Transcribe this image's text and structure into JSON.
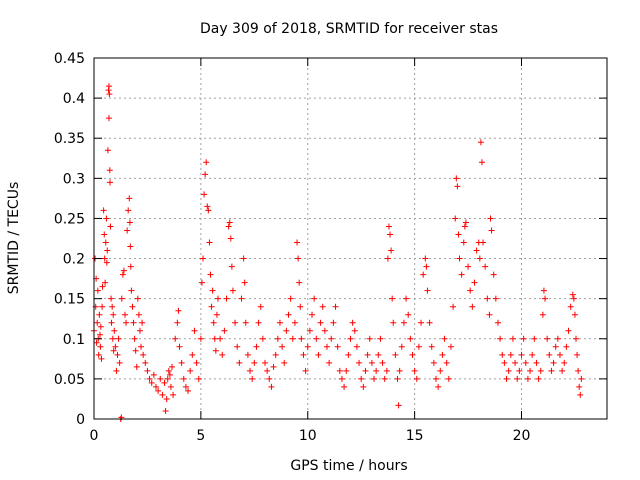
{
  "chart_data": {
    "type": "scatter",
    "title": "Day 309 of 2018, SRMTID for receiver stas",
    "xlabel": "GPS time / hours",
    "ylabel": "SRMTID / TECUs",
    "xlim": [
      0,
      24
    ],
    "ylim": [
      0,
      0.45
    ],
    "x_ticks": [
      0,
      5,
      10,
      15,
      20
    ],
    "x_tick_labels": [
      "0",
      "5",
      "10",
      "15",
      "20"
    ],
    "y_ticks": [
      0,
      0.05,
      0.1,
      0.15,
      0.2,
      0.25,
      0.3,
      0.35,
      0.4,
      0.45
    ],
    "y_tick_labels": [
      "0",
      "0.05",
      "0.1",
      "0.15",
      "0.2",
      "0.25",
      "0.3",
      "0.35",
      "0.4",
      "0.45"
    ],
    "grid": true,
    "marker": "+",
    "color": "#ff0000",
    "series": [
      {
        "points": [
          [
            0.0,
            0.11
          ],
          [
            0.05,
            0.2
          ],
          [
            0.08,
            0.14
          ],
          [
            0.1,
            0.175
          ],
          [
            0.12,
            0.095
          ],
          [
            0.15,
            0.12
          ],
          [
            0.18,
            0.16
          ],
          [
            0.2,
            0.1
          ],
          [
            0.22,
            0.08
          ],
          [
            0.25,
            0.13
          ],
          [
            0.28,
            0.105
          ],
          [
            0.3,
            0.09
          ],
          [
            0.32,
            0.115
          ],
          [
            0.35,
            0.075
          ],
          [
            0.38,
            0.14
          ],
          [
            0.4,
            0.165
          ],
          [
            0.45,
            0.26
          ],
          [
            0.48,
            0.23
          ],
          [
            0.5,
            0.2
          ],
          [
            0.52,
            0.17
          ],
          [
            0.55,
            0.22
          ],
          [
            0.58,
            0.25
          ],
          [
            0.6,
            0.195
          ],
          [
            0.62,
            0.21
          ],
          [
            0.65,
            0.335
          ],
          [
            0.68,
            0.41
          ],
          [
            0.7,
            0.415
          ],
          [
            0.72,
            0.405
          ],
          [
            0.7,
            0.375
          ],
          [
            0.74,
            0.31
          ],
          [
            0.75,
            0.295
          ],
          [
            0.77,
            0.24
          ],
          [
            0.8,
            0.15
          ],
          [
            0.82,
            0.12
          ],
          [
            0.85,
            0.14
          ],
          [
            0.88,
            0.1
          ],
          [
            0.9,
            0.13
          ],
          [
            0.92,
            0.085
          ],
          [
            0.95,
            0.11
          ],
          [
            1.0,
            0.09
          ],
          [
            1.05,
            0.06
          ],
          [
            1.1,
            0.08
          ],
          [
            1.15,
            0.1
          ],
          [
            1.2,
            0.07
          ],
          [
            1.25,
            0.0
          ],
          [
            1.28,
            0.002
          ],
          [
            1.3,
            0.15
          ],
          [
            1.35,
            0.18
          ],
          [
            1.4,
            0.185
          ],
          [
            1.45,
            0.13
          ],
          [
            1.5,
            0.12
          ],
          [
            1.55,
            0.235
          ],
          [
            1.6,
            0.26
          ],
          [
            1.65,
            0.275
          ],
          [
            1.68,
            0.245
          ],
          [
            1.7,
            0.215
          ],
          [
            1.72,
            0.19
          ],
          [
            1.75,
            0.16
          ],
          [
            1.8,
            0.14
          ],
          [
            1.85,
            0.12
          ],
          [
            1.9,
            0.1
          ],
          [
            1.95,
            0.085
          ],
          [
            2.0,
            0.065
          ],
          [
            2.05,
            0.15
          ],
          [
            2.1,
            0.13
          ],
          [
            2.15,
            0.11
          ],
          [
            2.2,
            0.09
          ],
          [
            2.25,
            0.12
          ],
          [
            2.3,
            0.08
          ],
          [
            2.4,
            0.07
          ],
          [
            2.5,
            0.06
          ],
          [
            2.6,
            0.05
          ],
          [
            2.7,
            0.045
          ],
          [
            2.8,
            0.055
          ],
          [
            2.9,
            0.04
          ],
          [
            3.0,
            0.035
          ],
          [
            3.1,
            0.05
          ],
          [
            3.2,
            0.03
          ],
          [
            3.3,
            0.045
          ],
          [
            3.4,
            0.025
          ],
          [
            3.5,
            0.06
          ],
          [
            3.6,
            0.04
          ],
          [
            3.7,
            0.03
          ],
          [
            3.35,
            0.01
          ],
          [
            3.45,
            0.05
          ],
          [
            3.55,
            0.055
          ],
          [
            3.65,
            0.065
          ],
          [
            3.8,
            0.1
          ],
          [
            3.9,
            0.12
          ],
          [
            3.95,
            0.135
          ],
          [
            4.0,
            0.09
          ],
          [
            4.1,
            0.07
          ],
          [
            4.2,
            0.05
          ],
          [
            4.3,
            0.04
          ],
          [
            4.4,
            0.035
          ],
          [
            4.5,
            0.06
          ],
          [
            4.6,
            0.08
          ],
          [
            4.7,
            0.11
          ],
          [
            4.8,
            0.07
          ],
          [
            4.9,
            0.05
          ],
          [
            5.0,
            0.1
          ],
          [
            5.05,
            0.17
          ],
          [
            5.1,
            0.2
          ],
          [
            5.15,
            0.28
          ],
          [
            5.2,
            0.305
          ],
          [
            5.25,
            0.32
          ],
          [
            5.3,
            0.265
          ],
          [
            5.35,
            0.26
          ],
          [
            5.4,
            0.22
          ],
          [
            5.45,
            0.18
          ],
          [
            5.5,
            0.14
          ],
          [
            5.55,
            0.16
          ],
          [
            5.6,
            0.12
          ],
          [
            5.65,
            0.1
          ],
          [
            5.7,
            0.085
          ],
          [
            5.75,
            0.13
          ],
          [
            5.8,
            0.15
          ],
          [
            5.9,
            0.1
          ],
          [
            6.0,
            0.08
          ],
          [
            6.1,
            0.11
          ],
          [
            6.2,
            0.15
          ],
          [
            6.3,
            0.24
          ],
          [
            6.35,
            0.245
          ],
          [
            6.4,
            0.225
          ],
          [
            6.45,
            0.19
          ],
          [
            6.5,
            0.16
          ],
          [
            6.6,
            0.12
          ],
          [
            6.7,
            0.09
          ],
          [
            6.8,
            0.07
          ],
          [
            6.9,
            0.15
          ],
          [
            7.0,
            0.2
          ],
          [
            7.05,
            0.17
          ],
          [
            7.1,
            0.12
          ],
          [
            7.2,
            0.08
          ],
          [
            7.3,
            0.06
          ],
          [
            7.4,
            0.05
          ],
          [
            7.5,
            0.07
          ],
          [
            7.6,
            0.09
          ],
          [
            7.7,
            0.12
          ],
          [
            7.8,
            0.14
          ],
          [
            7.9,
            0.1
          ],
          [
            8.0,
            0.07
          ],
          [
            8.1,
            0.06
          ],
          [
            8.2,
            0.05
          ],
          [
            8.3,
            0.04
          ],
          [
            8.4,
            0.065
          ],
          [
            8.5,
            0.08
          ],
          [
            8.6,
            0.1
          ],
          [
            8.7,
            0.12
          ],
          [
            8.8,
            0.09
          ],
          [
            8.9,
            0.07
          ],
          [
            9.0,
            0.11
          ],
          [
            9.1,
            0.13
          ],
          [
            9.2,
            0.15
          ],
          [
            9.3,
            0.1
          ],
          [
            9.4,
            0.12
          ],
          [
            9.5,
            0.22
          ],
          [
            9.55,
            0.2
          ],
          [
            9.6,
            0.17
          ],
          [
            9.65,
            0.14
          ],
          [
            9.7,
            0.1
          ],
          [
            9.8,
            0.08
          ],
          [
            9.9,
            0.06
          ],
          [
            10.0,
            0.09
          ],
          [
            10.1,
            0.11
          ],
          [
            10.2,
            0.13
          ],
          [
            10.3,
            0.15
          ],
          [
            10.4,
            0.1
          ],
          [
            10.5,
            0.08
          ],
          [
            10.6,
            0.12
          ],
          [
            10.7,
            0.14
          ],
          [
            10.8,
            0.11
          ],
          [
            10.9,
            0.09
          ],
          [
            11.0,
            0.07
          ],
          [
            11.1,
            0.1
          ],
          [
            11.2,
            0.12
          ],
          [
            11.3,
            0.14
          ],
          [
            11.4,
            0.09
          ],
          [
            11.5,
            0.06
          ],
          [
            11.6,
            0.05
          ],
          [
            11.7,
            0.04
          ],
          [
            11.8,
            0.06
          ],
          [
            11.9,
            0.08
          ],
          [
            12.0,
            0.1
          ],
          [
            12.1,
            0.12
          ],
          [
            12.2,
            0.11
          ],
          [
            12.3,
            0.09
          ],
          [
            12.4,
            0.07
          ],
          [
            12.5,
            0.05
          ],
          [
            12.6,
            0.04
          ],
          [
            12.7,
            0.06
          ],
          [
            12.8,
            0.08
          ],
          [
            12.9,
            0.1
          ],
          [
            13.0,
            0.07
          ],
          [
            13.1,
            0.05
          ],
          [
            13.2,
            0.06
          ],
          [
            13.3,
            0.08
          ],
          [
            13.4,
            0.1
          ],
          [
            13.5,
            0.07
          ],
          [
            13.6,
            0.05
          ],
          [
            13.7,
            0.06
          ],
          [
            13.75,
            0.2
          ],
          [
            13.8,
            0.24
          ],
          [
            13.85,
            0.23
          ],
          [
            13.9,
            0.21
          ],
          [
            13.95,
            0.15
          ],
          [
            14.0,
            0.12
          ],
          [
            14.1,
            0.08
          ],
          [
            14.2,
            0.05
          ],
          [
            14.25,
            0.017
          ],
          [
            14.3,
            0.06
          ],
          [
            14.4,
            0.09
          ],
          [
            14.5,
            0.12
          ],
          [
            14.6,
            0.15
          ],
          [
            14.7,
            0.13
          ],
          [
            14.8,
            0.1
          ],
          [
            14.9,
            0.08
          ],
          [
            15.0,
            0.06
          ],
          [
            15.1,
            0.05
          ],
          [
            15.2,
            0.09
          ],
          [
            15.3,
            0.12
          ],
          [
            15.4,
            0.18
          ],
          [
            15.5,
            0.2
          ],
          [
            15.55,
            0.19
          ],
          [
            15.6,
            0.16
          ],
          [
            15.7,
            0.12
          ],
          [
            15.8,
            0.09
          ],
          [
            15.9,
            0.07
          ],
          [
            16.0,
            0.05
          ],
          [
            16.1,
            0.04
          ],
          [
            16.2,
            0.06
          ],
          [
            16.3,
            0.08
          ],
          [
            16.4,
            0.1
          ],
          [
            16.5,
            0.07
          ],
          [
            16.6,
            0.05
          ],
          [
            16.7,
            0.09
          ],
          [
            16.8,
            0.14
          ],
          [
            16.9,
            0.25
          ],
          [
            16.95,
            0.3
          ],
          [
            17.0,
            0.29
          ],
          [
            17.05,
            0.23
          ],
          [
            17.1,
            0.2
          ],
          [
            17.2,
            0.18
          ],
          [
            17.3,
            0.22
          ],
          [
            17.35,
            0.24
          ],
          [
            17.4,
            0.245
          ],
          [
            17.5,
            0.19
          ],
          [
            17.6,
            0.16
          ],
          [
            17.7,
            0.14
          ],
          [
            17.8,
            0.17
          ],
          [
            17.9,
            0.21
          ],
          [
            18.0,
            0.22
          ],
          [
            18.05,
            0.2
          ],
          [
            18.1,
            0.345
          ],
          [
            18.15,
            0.32
          ],
          [
            18.2,
            0.22
          ],
          [
            18.3,
            0.19
          ],
          [
            18.4,
            0.15
          ],
          [
            18.5,
            0.13
          ],
          [
            18.55,
            0.25
          ],
          [
            18.6,
            0.235
          ],
          [
            18.7,
            0.18
          ],
          [
            18.8,
            0.15
          ],
          [
            18.9,
            0.12
          ],
          [
            19.0,
            0.1
          ],
          [
            19.1,
            0.08
          ],
          [
            19.2,
            0.07
          ],
          [
            19.3,
            0.05
          ],
          [
            19.4,
            0.06
          ],
          [
            19.5,
            0.08
          ],
          [
            19.6,
            0.1
          ],
          [
            19.7,
            0.07
          ],
          [
            19.8,
            0.05
          ],
          [
            19.9,
            0.06
          ],
          [
            20.0,
            0.08
          ],
          [
            20.1,
            0.1
          ],
          [
            20.2,
            0.07
          ],
          [
            20.3,
            0.05
          ],
          [
            20.4,
            0.06
          ],
          [
            20.5,
            0.08
          ],
          [
            20.6,
            0.1
          ],
          [
            20.7,
            0.07
          ],
          [
            20.8,
            0.05
          ],
          [
            20.9,
            0.06
          ],
          [
            21.0,
            0.13
          ],
          [
            21.05,
            0.16
          ],
          [
            21.1,
            0.15
          ],
          [
            21.2,
            0.1
          ],
          [
            21.3,
            0.08
          ],
          [
            21.4,
            0.06
          ],
          [
            21.5,
            0.07
          ],
          [
            21.6,
            0.09
          ],
          [
            21.7,
            0.1
          ],
          [
            21.8,
            0.08
          ],
          [
            21.9,
            0.06
          ],
          [
            22.0,
            0.07
          ],
          [
            22.1,
            0.09
          ],
          [
            22.2,
            0.11
          ],
          [
            22.3,
            0.14
          ],
          [
            22.4,
            0.155
          ],
          [
            22.45,
            0.15
          ],
          [
            22.5,
            0.13
          ],
          [
            22.55,
            0.1
          ],
          [
            22.6,
            0.08
          ],
          [
            22.65,
            0.06
          ],
          [
            22.7,
            0.04
          ],
          [
            22.75,
            0.03
          ],
          [
            22.8,
            0.05
          ]
        ]
      }
    ]
  }
}
